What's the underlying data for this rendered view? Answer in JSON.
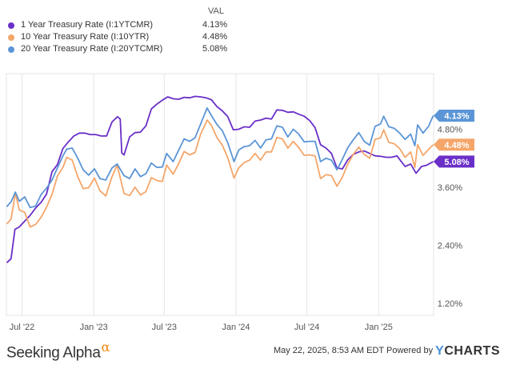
{
  "legend": {
    "header": "VAL",
    "items": [
      {
        "name": "1 Year Treasury Rate (I:1YTCMR)",
        "value": "4.13%",
        "color": "#6a2fc8"
      },
      {
        "name": "10 Year Treasury Rate (I:10YTR)",
        "value": "4.48%",
        "color": "#f5a66a"
      },
      {
        "name": "20 Year Treasury Rate (I:20YTCMR)",
        "value": "5.08%",
        "color": "#5b95d6"
      }
    ]
  },
  "footer": {
    "brand": "Seeking Alpha",
    "brand_symbol": "α",
    "timestamp": "May 22, 2025, 8:53 AM EDT Powered by",
    "ycharts_y": "Y",
    "ycharts_rest": "CHARTS"
  },
  "chart_data": {
    "type": "line",
    "x_tick_labels": [
      "Jul '22",
      "Jan '23",
      "Jul '23",
      "Jan '24",
      "Jul '24",
      "Jan '25"
    ],
    "x_ticks": [
      "2022-07-01",
      "2023-01-01",
      "2023-07-01",
      "2024-01-01",
      "2024-07-01",
      "2025-01-01"
    ],
    "y_tick_labels": [
      "1.20%",
      "2.40%",
      "3.60%",
      "4.80%"
    ],
    "y_ticks": [
      1.2,
      2.4,
      3.6,
      4.8
    ],
    "xlim": [
      "2022-05-22",
      "2025-05-22"
    ],
    "ylim": [
      0.95,
      5.95
    ],
    "grid": "vertical",
    "end_labels": [
      "5.08%",
      "4.48%",
      "4.13%"
    ],
    "series": [
      {
        "name": "1 Year Treasury Rate (I:1YTCMR)",
        "color": "#6a2fc8",
        "points": [
          [
            "2022-05-23",
            2.04
          ],
          [
            "2022-06-03",
            2.12
          ],
          [
            "2022-06-13",
            2.73
          ],
          [
            "2022-06-24",
            2.78
          ],
          [
            "2022-07-08",
            2.9
          ],
          [
            "2022-07-22",
            3.02
          ],
          [
            "2022-08-05",
            3.17
          ],
          [
            "2022-08-19",
            3.29
          ],
          [
            "2022-09-02",
            3.46
          ],
          [
            "2022-09-16",
            3.92
          ],
          [
            "2022-09-30",
            4.07
          ],
          [
            "2022-10-14",
            4.4
          ],
          [
            "2022-10-28",
            4.54
          ],
          [
            "2022-11-11",
            4.66
          ],
          [
            "2022-11-25",
            4.72
          ],
          [
            "2022-12-09",
            4.72
          ],
          [
            "2022-12-23",
            4.69
          ],
          [
            "2023-01-06",
            4.69
          ],
          [
            "2023-01-20",
            4.66
          ],
          [
            "2023-02-03",
            4.66
          ],
          [
            "2023-02-17",
            4.95
          ],
          [
            "2023-03-03",
            5.06
          ],
          [
            "2023-03-10",
            5.01
          ],
          [
            "2023-03-14",
            4.31
          ],
          [
            "2023-03-20",
            4.27
          ],
          [
            "2023-04-03",
            4.64
          ],
          [
            "2023-04-17",
            4.73
          ],
          [
            "2023-05-01",
            4.74
          ],
          [
            "2023-05-15",
            4.87
          ],
          [
            "2023-05-29",
            5.22
          ],
          [
            "2023-06-12",
            5.32
          ],
          [
            "2023-06-26",
            5.4
          ],
          [
            "2023-07-10",
            5.47
          ],
          [
            "2023-07-24",
            5.43
          ],
          [
            "2023-08-07",
            5.42
          ],
          [
            "2023-08-21",
            5.46
          ],
          [
            "2023-09-04",
            5.45
          ],
          [
            "2023-09-18",
            5.48
          ],
          [
            "2023-10-02",
            5.47
          ],
          [
            "2023-10-16",
            5.45
          ],
          [
            "2023-10-30",
            5.41
          ],
          [
            "2023-11-13",
            5.27
          ],
          [
            "2023-11-27",
            5.18
          ],
          [
            "2023-12-11",
            5.06
          ],
          [
            "2023-12-25",
            4.79
          ],
          [
            "2024-01-08",
            4.8
          ],
          [
            "2024-01-22",
            4.85
          ],
          [
            "2024-02-05",
            4.84
          ],
          [
            "2024-02-19",
            4.97
          ],
          [
            "2024-03-04",
            4.99
          ],
          [
            "2024-03-18",
            5.03
          ],
          [
            "2024-04-01",
            5.01
          ],
          [
            "2024-04-15",
            5.2
          ],
          [
            "2024-04-29",
            5.19
          ],
          [
            "2024-05-13",
            5.15
          ],
          [
            "2024-05-27",
            5.16
          ],
          [
            "2024-06-10",
            5.11
          ],
          [
            "2024-06-24",
            5.07
          ],
          [
            "2024-07-08",
            4.98
          ],
          [
            "2024-07-22",
            4.83
          ],
          [
            "2024-08-05",
            4.48
          ],
          [
            "2024-08-19",
            4.41
          ],
          [
            "2024-09-02",
            4.3
          ],
          [
            "2024-09-16",
            4.0
          ],
          [
            "2024-09-30",
            3.98
          ],
          [
            "2024-10-14",
            4.17
          ],
          [
            "2024-10-28",
            4.28
          ],
          [
            "2024-11-11",
            4.33
          ],
          [
            "2024-11-25",
            4.35
          ],
          [
            "2024-12-09",
            4.3
          ],
          [
            "2024-12-23",
            4.25
          ],
          [
            "2025-01-06",
            4.24
          ],
          [
            "2025-01-20",
            4.22
          ],
          [
            "2025-02-03",
            4.22
          ],
          [
            "2025-02-17",
            4.25
          ],
          [
            "2025-03-03",
            4.1
          ],
          [
            "2025-03-10",
            4.03
          ],
          [
            "2025-03-24",
            4.08
          ],
          [
            "2025-04-07",
            3.89
          ],
          [
            "2025-04-21",
            4.03
          ],
          [
            "2025-05-05",
            4.06
          ],
          [
            "2025-05-21",
            4.13
          ]
        ]
      },
      {
        "name": "10 Year Treasury Rate (I:10YTR)",
        "color": "#f5a66a",
        "points": [
          [
            "2022-05-23",
            2.84
          ],
          [
            "2022-06-03",
            2.94
          ],
          [
            "2022-06-14",
            3.48
          ],
          [
            "2022-06-24",
            3.13
          ],
          [
            "2022-07-08",
            3.08
          ],
          [
            "2022-07-22",
            2.78
          ],
          [
            "2022-08-05",
            2.83
          ],
          [
            "2022-08-19",
            2.98
          ],
          [
            "2022-09-02",
            3.19
          ],
          [
            "2022-09-16",
            3.45
          ],
          [
            "2022-09-30",
            3.83
          ],
          [
            "2022-10-14",
            4.01
          ],
          [
            "2022-10-24",
            4.22
          ],
          [
            "2022-11-07",
            4.16
          ],
          [
            "2022-11-21",
            3.82
          ],
          [
            "2022-12-05",
            3.57
          ],
          [
            "2022-12-19",
            3.59
          ],
          [
            "2023-01-03",
            3.79
          ],
          [
            "2023-01-17",
            3.53
          ],
          [
            "2023-02-01",
            3.42
          ],
          [
            "2023-02-17",
            3.82
          ],
          [
            "2023-03-02",
            4.06
          ],
          [
            "2023-03-20",
            3.47
          ],
          [
            "2023-04-03",
            3.43
          ],
          [
            "2023-04-17",
            3.6
          ],
          [
            "2023-05-01",
            3.44
          ],
          [
            "2023-05-15",
            3.51
          ],
          [
            "2023-05-29",
            3.8
          ],
          [
            "2023-06-12",
            3.74
          ],
          [
            "2023-06-26",
            3.72
          ],
          [
            "2023-07-07",
            4.06
          ],
          [
            "2023-07-24",
            3.87
          ],
          [
            "2023-08-07",
            4.09
          ],
          [
            "2023-08-21",
            4.34
          ],
          [
            "2023-09-04",
            4.27
          ],
          [
            "2023-09-18",
            4.32
          ],
          [
            "2023-10-02",
            4.69
          ],
          [
            "2023-10-19",
            4.99
          ],
          [
            "2023-10-30",
            4.88
          ],
          [
            "2023-11-13",
            4.63
          ],
          [
            "2023-11-27",
            4.47
          ],
          [
            "2023-12-11",
            4.21
          ],
          [
            "2023-12-27",
            3.79
          ],
          [
            "2024-01-08",
            4.0
          ],
          [
            "2024-01-22",
            4.11
          ],
          [
            "2024-02-05",
            4.16
          ],
          [
            "2024-02-19",
            4.3
          ],
          [
            "2024-03-04",
            4.16
          ],
          [
            "2024-03-18",
            4.33
          ],
          [
            "2024-04-01",
            4.33
          ],
          [
            "2024-04-15",
            4.63
          ],
          [
            "2024-04-29",
            4.6
          ],
          [
            "2024-05-13",
            4.41
          ],
          [
            "2024-05-27",
            4.55
          ],
          [
            "2024-06-10",
            4.42
          ],
          [
            "2024-06-24",
            4.26
          ],
          [
            "2024-07-08",
            4.27
          ],
          [
            "2024-07-22",
            4.25
          ],
          [
            "2024-08-05",
            3.78
          ],
          [
            "2024-08-19",
            3.86
          ],
          [
            "2024-09-02",
            3.84
          ],
          [
            "2024-09-16",
            3.62
          ],
          [
            "2024-09-30",
            3.81
          ],
          [
            "2024-10-14",
            4.08
          ],
          [
            "2024-10-28",
            4.28
          ],
          [
            "2024-11-11",
            4.43
          ],
          [
            "2024-11-25",
            4.28
          ],
          [
            "2024-12-09",
            4.2
          ],
          [
            "2024-12-23",
            4.59
          ],
          [
            "2025-01-06",
            4.62
          ],
          [
            "2025-01-14",
            4.79
          ],
          [
            "2025-01-27",
            4.53
          ],
          [
            "2025-02-10",
            4.5
          ],
          [
            "2025-02-24",
            4.4
          ],
          [
            "2025-03-10",
            4.22
          ],
          [
            "2025-03-24",
            4.33
          ],
          [
            "2025-04-04",
            4.01
          ],
          [
            "2025-04-11",
            4.48
          ],
          [
            "2025-04-25",
            4.26
          ],
          [
            "2025-05-09",
            4.38
          ],
          [
            "2025-05-21",
            4.48
          ]
        ]
      },
      {
        "name": "20 Year Treasury Rate (I:20YTCMR)",
        "color": "#5b95d6",
        "points": [
          [
            "2022-05-23",
            3.2
          ],
          [
            "2022-06-03",
            3.3
          ],
          [
            "2022-06-14",
            3.5
          ],
          [
            "2022-06-24",
            3.31
          ],
          [
            "2022-07-08",
            3.4
          ],
          [
            "2022-07-22",
            3.18
          ],
          [
            "2022-08-05",
            3.21
          ],
          [
            "2022-08-19",
            3.45
          ],
          [
            "2022-09-02",
            3.58
          ],
          [
            "2022-09-16",
            3.75
          ],
          [
            "2022-09-30",
            4.0
          ],
          [
            "2022-10-14",
            4.25
          ],
          [
            "2022-10-24",
            4.39
          ],
          [
            "2022-11-07",
            4.41
          ],
          [
            "2022-11-21",
            4.2
          ],
          [
            "2022-12-05",
            3.96
          ],
          [
            "2022-12-19",
            3.85
          ],
          [
            "2023-01-03",
            3.98
          ],
          [
            "2023-01-17",
            3.78
          ],
          [
            "2023-02-01",
            3.75
          ],
          [
            "2023-02-17",
            4.0
          ],
          [
            "2023-03-02",
            4.08
          ],
          [
            "2023-03-20",
            3.84
          ],
          [
            "2023-04-03",
            3.78
          ],
          [
            "2023-04-17",
            3.98
          ],
          [
            "2023-05-01",
            3.82
          ],
          [
            "2023-05-15",
            3.88
          ],
          [
            "2023-05-29",
            4.1
          ],
          [
            "2023-06-12",
            4.01
          ],
          [
            "2023-06-26",
            4.02
          ],
          [
            "2023-07-07",
            4.3
          ],
          [
            "2023-07-24",
            4.13
          ],
          [
            "2023-08-07",
            4.37
          ],
          [
            "2023-08-21",
            4.6
          ],
          [
            "2023-09-04",
            4.55
          ],
          [
            "2023-09-18",
            4.62
          ],
          [
            "2023-10-02",
            4.9
          ],
          [
            "2023-10-19",
            5.24
          ],
          [
            "2023-10-30",
            5.08
          ],
          [
            "2023-11-13",
            4.9
          ],
          [
            "2023-11-27",
            4.77
          ],
          [
            "2023-12-11",
            4.52
          ],
          [
            "2023-12-27",
            4.13
          ],
          [
            "2024-01-08",
            4.37
          ],
          [
            "2024-01-22",
            4.44
          ],
          [
            "2024-02-05",
            4.46
          ],
          [
            "2024-02-19",
            4.57
          ],
          [
            "2024-03-04",
            4.41
          ],
          [
            "2024-03-18",
            4.58
          ],
          [
            "2024-04-01",
            4.6
          ],
          [
            "2024-04-15",
            4.87
          ],
          [
            "2024-04-29",
            4.84
          ],
          [
            "2024-05-13",
            4.64
          ],
          [
            "2024-05-27",
            4.8
          ],
          [
            "2024-06-10",
            4.7
          ],
          [
            "2024-06-24",
            4.54
          ],
          [
            "2024-07-08",
            4.55
          ],
          [
            "2024-07-22",
            4.55
          ],
          [
            "2024-08-05",
            4.13
          ],
          [
            "2024-08-19",
            4.2
          ],
          [
            "2024-09-02",
            4.16
          ],
          [
            "2024-09-16",
            3.96
          ],
          [
            "2024-09-30",
            4.18
          ],
          [
            "2024-10-14",
            4.42
          ],
          [
            "2024-10-28",
            4.58
          ],
          [
            "2024-11-11",
            4.73
          ],
          [
            "2024-11-25",
            4.55
          ],
          [
            "2024-12-09",
            4.47
          ],
          [
            "2024-12-23",
            4.86
          ],
          [
            "2025-01-06",
            4.91
          ],
          [
            "2025-01-14",
            5.07
          ],
          [
            "2025-01-27",
            4.85
          ],
          [
            "2025-02-10",
            4.82
          ],
          [
            "2025-02-24",
            4.72
          ],
          [
            "2025-03-10",
            4.59
          ],
          [
            "2025-03-24",
            4.7
          ],
          [
            "2025-04-04",
            4.46
          ],
          [
            "2025-04-11",
            4.89
          ],
          [
            "2025-04-25",
            4.72
          ],
          [
            "2025-05-09",
            4.86
          ],
          [
            "2025-05-21",
            5.08
          ]
        ]
      }
    ]
  }
}
